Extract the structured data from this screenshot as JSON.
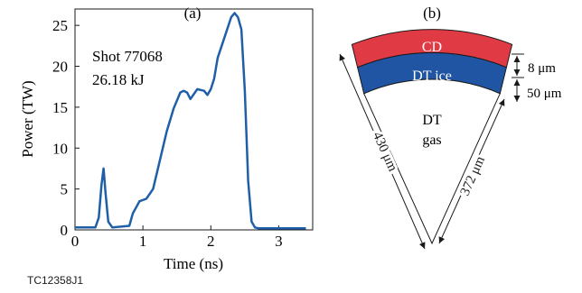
{
  "figure_id": "TC12358J1",
  "chart_data": [
    {
      "type": "line",
      "panel_label": "(a)",
      "xlabel": "Time (ns)",
      "ylabel": "Power (TW)",
      "xlim": [
        0,
        3.5
      ],
      "ylim": [
        0,
        27
      ],
      "xticks": [
        "0",
        "1",
        "2",
        "3"
      ],
      "yticks": [
        "0",
        "5",
        "10",
        "15",
        "20",
        "25"
      ],
      "annotation_lines": [
        "Shot 77068",
        "26.18 kJ"
      ],
      "color": "#1f5fa8",
      "series": [
        {
          "x": [
            0,
            0.3,
            0.35,
            0.39,
            0.42,
            0.45,
            0.49,
            0.55,
            0.8,
            0.85,
            0.95,
            1.05,
            1.15,
            1.25,
            1.35,
            1.45,
            1.55,
            1.6,
            1.65,
            1.7,
            1.75,
            1.8,
            1.85,
            1.9,
            1.95,
            2.0,
            2.05,
            2.1,
            2.2,
            2.3,
            2.35,
            2.4,
            2.45,
            2.5,
            2.55,
            2.6,
            2.65,
            2.7,
            3.0,
            3.4
          ],
          "y": [
            0.3,
            0.3,
            1.5,
            5.5,
            7.5,
            4.5,
            1.0,
            0.3,
            0.5,
            2.0,
            3.5,
            3.8,
            5.0,
            8.5,
            12.0,
            14.8,
            16.8,
            17.0,
            16.8,
            16.0,
            16.6,
            17.2,
            17.1,
            17.0,
            16.5,
            17.2,
            18.5,
            21.0,
            23.5,
            26.0,
            26.5,
            26.0,
            24.5,
            17.0,
            6.0,
            1.0,
            0.3,
            0.2,
            0.2,
            0.2
          ]
        }
      ]
    },
    {
      "type": "diagram",
      "panel_label": "(b)",
      "layers": [
        {
          "name": "CD",
          "color": "#e03a45"
        },
        {
          "name": "DT ice",
          "color": "#2055a4"
        },
        {
          "name": "DT gas",
          "lines": [
            "DT",
            "gas"
          ],
          "color": "#ffffff"
        }
      ],
      "dimensions": {
        "outer_radius": "430 μm",
        "inner_radius": "372 μm",
        "cd_thickness": "8 μm",
        "ice_thickness": "50 μm"
      }
    }
  ]
}
